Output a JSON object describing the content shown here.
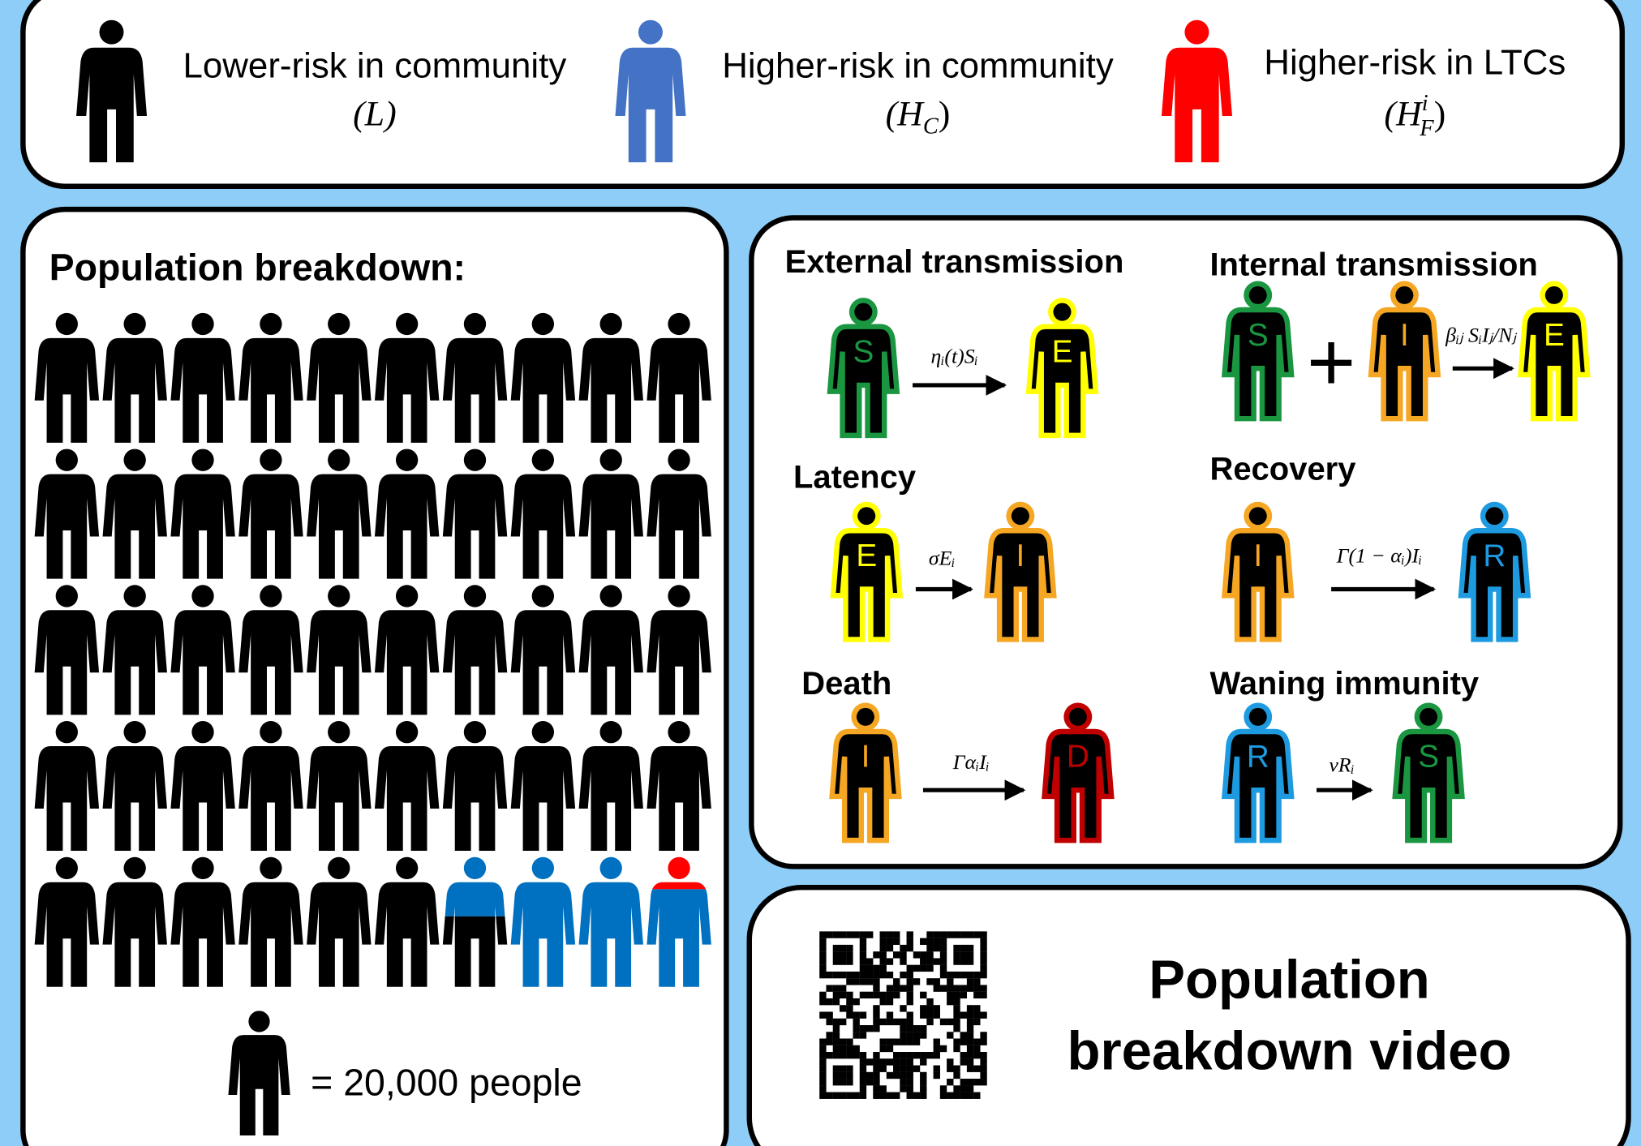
{
  "legend": [
    {
      "label": "Lower-risk in community",
      "symbol": "(L)",
      "color": "#000000"
    },
    {
      "label": "Higher-risk in community",
      "symbol": "(H",
      "sub": "C",
      "close": ")",
      "color": "#4472c4"
    },
    {
      "label": "Higher-risk in LTCs",
      "symbol": "(H",
      "sub": "F",
      "sup": "i",
      "close": ")",
      "color": "#ff0000"
    }
  ],
  "population": {
    "title": "Population breakdown:",
    "key": "= 20,000 people"
  },
  "colors": {
    "S": "#1a9641",
    "E": "#ffff00",
    "I": "#f5a623",
    "R": "#1e9be0",
    "D": "#c00000"
  },
  "transitions": [
    {
      "title": "External transmission",
      "figures": [
        "S",
        "E"
      ],
      "rate": "ηᵢ(t)Sᵢ"
    },
    {
      "title": "Internal transmission",
      "figures": [
        "S",
        "I",
        "E"
      ],
      "operator": "+",
      "rate": "βᵢⱼ SᵢIⱼ/Nⱼ"
    },
    {
      "title": "Latency",
      "figures": [
        "E",
        "I"
      ],
      "rate": "σEᵢ"
    },
    {
      "title": "Recovery",
      "figures": [
        "I",
        "R"
      ],
      "rate": "Γ(1 − αᵢ)Iᵢ"
    },
    {
      "title": "Death",
      "figures": [
        "I",
        "D"
      ],
      "rate": "ΓαᵢIᵢ"
    },
    {
      "title": "Waning immunity",
      "figures": [
        "R",
        "S"
      ],
      "rate": "νRᵢ"
    }
  ],
  "video": {
    "line1": "Population",
    "line2": "breakdown video"
  }
}
